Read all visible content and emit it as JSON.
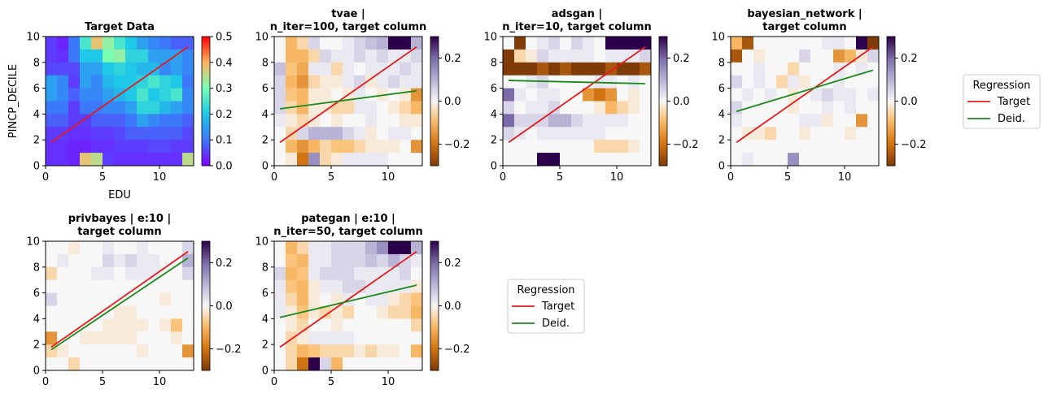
{
  "figure": {
    "legend_title": "Regression",
    "legend_entries": [
      "Target",
      "Deid."
    ],
    "colors": {
      "target_line": "#e41a1c",
      "deid_line": "#1a8a1a"
    }
  },
  "chart_data": [
    {
      "type": "heatmap",
      "title_lines": [
        "Target Data"
      ],
      "xlabel": "EDU",
      "ylabel": "PINCP_DECILE",
      "xlim": [
        0,
        13
      ],
      "ylim": [
        0,
        10
      ],
      "xticks": [
        "0",
        "5",
        "10"
      ],
      "yticks": [
        "0",
        "2",
        "4",
        "6",
        "8",
        "10"
      ],
      "colormap": "rainbow",
      "colorbar_range": [
        0,
        0.5
      ],
      "colorbar_ticks": [
        "0.0",
        "0.1",
        "0.2",
        "0.3",
        "0.4",
        "0.5"
      ],
      "grid_cols": 13,
      "grid_rows": 10,
      "cells": [
        [
          0.05,
          0.03,
          0.1,
          0.25,
          0.38,
          0.32,
          0.25,
          0.2,
          0.15,
          0.12,
          0.1,
          0.08,
          0.08
        ],
        [
          0.05,
          0.04,
          0.1,
          0.2,
          0.2,
          0.3,
          0.32,
          0.22,
          0.22,
          0.15,
          0.15,
          0.15,
          0.12
        ],
        [
          0.06,
          0.06,
          0.06,
          0.15,
          0.15,
          0.2,
          0.22,
          0.2,
          0.18,
          0.18,
          0.12,
          0.15,
          0.12
        ],
        [
          0.15,
          0.12,
          0.05,
          0.15,
          0.12,
          0.18,
          0.2,
          0.2,
          0.22,
          0.25,
          0.22,
          0.2,
          0.1
        ],
        [
          0.15,
          0.12,
          0.08,
          0.12,
          0.12,
          0.15,
          0.18,
          0.2,
          0.25,
          0.2,
          0.22,
          0.25,
          0.12
        ],
        [
          0.1,
          0.1,
          0.05,
          0.1,
          0.1,
          0.12,
          0.12,
          0.15,
          0.22,
          0.22,
          0.18,
          0.15,
          0.12
        ],
        [
          0.08,
          0.08,
          0.05,
          0.05,
          0.08,
          0.08,
          0.08,
          0.1,
          0.15,
          0.12,
          0.1,
          0.1,
          0.08
        ],
        [
          0.05,
          0.05,
          0.04,
          0.04,
          0.05,
          0.05,
          0.06,
          0.08,
          0.08,
          0.08,
          0.08,
          0.08,
          0.06
        ],
        [
          0.04,
          0.04,
          0.03,
          0.03,
          0.04,
          0.04,
          0.05,
          0.05,
          0.05,
          0.06,
          0.06,
          0.05,
          0.05
        ],
        [
          0.04,
          0.04,
          0.03,
          0.38,
          0.35,
          0.05,
          0.04,
          0.04,
          0.04,
          0.04,
          0.04,
          0.04,
          0.35
        ]
      ],
      "series": [
        {
          "name": "Target",
          "x": [
            0.5,
            12.5
          ],
          "y": [
            1.8,
            9.2
          ]
        }
      ]
    },
    {
      "type": "heatmap",
      "title_lines": [
        "tvae |",
        "n_iter=100, target column"
      ],
      "xlabel": "",
      "ylabel": "",
      "xlim": [
        0,
        13
      ],
      "ylim": [
        0,
        10
      ],
      "xticks": [
        "0",
        "5",
        "10"
      ],
      "yticks": [
        "0",
        "2",
        "4",
        "6",
        "8",
        "10"
      ],
      "colormap": "diverging",
      "colorbar_range": [
        -0.3,
        0.3
      ],
      "colorbar_ticks": [
        "−0.2",
        "0.0",
        "0.2"
      ],
      "grid_cols": 13,
      "grid_rows": 10,
      "cells": [
        [
          0,
          -0.1,
          -0.05,
          0.05,
          0,
          0,
          0.02,
          0.05,
          0.08,
          0.1,
          0.3,
          0.3,
          0.1
        ],
        [
          0,
          -0.1,
          -0.1,
          -0.05,
          0.05,
          0.02,
          0.02,
          0.05,
          0.02,
          0.05,
          0.02,
          0.02,
          0.05
        ],
        [
          0.08,
          -0.08,
          -0.12,
          0.02,
          0.02,
          -0.05,
          0.02,
          0,
          0.02,
          0.02,
          0.02,
          0.05,
          0.02
        ],
        [
          0.05,
          -0.1,
          -0.15,
          -0.05,
          -0.02,
          -0.02,
          0.02,
          0.05,
          -0.02,
          0.02,
          0.05,
          0.02,
          0.02
        ],
        [
          0.05,
          -0.08,
          -0.1,
          -0.02,
          -0.02,
          0,
          -0.02,
          0.02,
          0,
          -0.02,
          0,
          -0.02,
          -0.15
        ],
        [
          0.05,
          -0.05,
          -0.1,
          -0.02,
          -0.02,
          -0.05,
          -0.05,
          0.02,
          0.02,
          0,
          -0.02,
          -0.05,
          -0.1
        ],
        [
          0.02,
          -0.02,
          -0.05,
          -0.02,
          0,
          -0.02,
          0,
          0,
          0.02,
          0,
          0,
          -0.02,
          -0.02
        ],
        [
          0,
          -0.05,
          0.05,
          0.1,
          0.1,
          0.1,
          0.05,
          0.02,
          -0.02,
          0,
          0.02,
          0.02,
          0
        ],
        [
          0,
          -0.1,
          -0.15,
          -0.1,
          -0.05,
          -0.08,
          -0.08,
          -0.05,
          -0.02,
          -0.02,
          -0.02,
          0,
          -0.15
        ],
        [
          0,
          -0.02,
          -0.2,
          0.15,
          -0.05,
          -0.02,
          0.02,
          0.02,
          0.02,
          0.02,
          0,
          0,
          0
        ]
      ],
      "series": [
        {
          "name": "Target",
          "x": [
            0.5,
            12.5
          ],
          "y": [
            1.8,
            9.2
          ]
        },
        {
          "name": "Deid.",
          "x": [
            0.5,
            12.5
          ],
          "y": [
            4.4,
            5.8
          ]
        }
      ]
    },
    {
      "type": "heatmap",
      "title_lines": [
        "adsgan |",
        "n_iter=10, target column"
      ],
      "xlabel": "",
      "ylabel": "",
      "xlim": [
        0,
        13
      ],
      "ylim": [
        0,
        10
      ],
      "xticks": [
        "0",
        "5",
        "10"
      ],
      "yticks": [
        "0",
        "2",
        "4",
        "6",
        "8",
        "10"
      ],
      "colormap": "diverging",
      "colorbar_range": [
        -0.3,
        0.3
      ],
      "colorbar_ticks": [
        "−0.2",
        "0.0",
        "0.2"
      ],
      "grid_cols": 13,
      "grid_rows": 10,
      "cells": [
        [
          0,
          -0.3,
          0,
          0.02,
          0.05,
          0,
          0.05,
          0.02,
          0,
          0.3,
          0.3,
          0.3,
          0.3
        ],
        [
          -0.3,
          -0.05,
          -0.02,
          0.05,
          0.02,
          0.02,
          0.02,
          0.02,
          0,
          0.02,
          0.02,
          0.02,
          0.05
        ],
        [
          -0.3,
          -0.3,
          -0.3,
          -0.25,
          -0.3,
          -0.25,
          -0.3,
          -0.3,
          -0.3,
          -0.25,
          -0.3,
          -0.3,
          -0.25
        ],
        [
          0,
          0,
          0.02,
          0.05,
          0,
          0,
          0,
          0,
          0.02,
          0.02,
          0,
          0.02,
          0
        ],
        [
          0.2,
          0.02,
          0,
          0.02,
          0.02,
          0,
          0,
          -0.15,
          -0.2,
          -0.15,
          0,
          -0.02,
          0
        ],
        [
          0.05,
          0,
          0.02,
          0.02,
          0.05,
          0,
          0,
          0,
          -0.02,
          -0.1,
          -0.05,
          -0.02,
          0
        ],
        [
          0.2,
          0.05,
          0.05,
          0.05,
          0.1,
          0.1,
          0.05,
          0.02,
          0.02,
          0.02,
          0.02,
          0,
          0
        ],
        [
          0.05,
          0.02,
          0,
          0.02,
          0.02,
          0.02,
          0.02,
          0.02,
          0.02,
          0,
          0,
          0,
          0
        ],
        [
          0,
          0,
          0,
          0,
          0,
          0,
          0,
          0,
          -0.05,
          -0.05,
          -0.05,
          -0.02,
          0
        ],
        [
          0,
          0,
          0,
          0.3,
          0.3,
          0,
          0,
          0,
          0,
          0,
          0,
          0,
          0
        ]
      ],
      "series": [
        {
          "name": "Target",
          "x": [
            0.5,
            12.5
          ],
          "y": [
            1.8,
            9.2
          ]
        },
        {
          "name": "Deid.",
          "x": [
            0.5,
            12.5
          ],
          "y": [
            6.6,
            6.35
          ]
        }
      ]
    },
    {
      "type": "heatmap",
      "title_lines": [
        "bayesian_network |",
        "target column"
      ],
      "xlabel": "",
      "ylabel": "",
      "xlim": [
        0,
        13
      ],
      "ylim": [
        0,
        10
      ],
      "xticks": [
        "0",
        "5",
        "10"
      ],
      "yticks": [
        "0",
        "2",
        "4",
        "6",
        "8",
        "10"
      ],
      "colormap": "diverging",
      "colorbar_range": [
        -0.3,
        0.3
      ],
      "colorbar_ticks": [
        "−0.2",
        "0.0",
        "0.2"
      ],
      "grid_cols": 13,
      "grid_rows": 10,
      "cells": [
        [
          -0.1,
          -0.25,
          0,
          0,
          0,
          0,
          0,
          0,
          0.02,
          0.02,
          0,
          0.3,
          -0.3
        ],
        [
          -0.25,
          0,
          -0.02,
          0,
          0,
          0,
          0.05,
          0,
          0,
          -0.15,
          -0.1,
          -0.02,
          0.05
        ],
        [
          0,
          0,
          0.02,
          0,
          0,
          -0.05,
          0,
          0,
          0,
          0.02,
          0,
          0.02,
          0
        ],
        [
          0.05,
          0,
          0.02,
          0,
          -0.05,
          0.02,
          -0.02,
          0,
          0,
          0.02,
          0,
          0,
          0
        ],
        [
          0,
          0.02,
          0,
          0.02,
          0,
          -0.02,
          0,
          0.02,
          0.05,
          0.02,
          0.02,
          0,
          0.02
        ],
        [
          0.05,
          0,
          0,
          0,
          0,
          -0.02,
          0,
          0,
          0.02,
          0,
          0.02,
          0,
          0
        ],
        [
          0.02,
          0,
          0,
          0,
          0,
          0,
          0.02,
          0.02,
          -0.02,
          0,
          0,
          -0.15,
          0
        ],
        [
          0,
          -0.02,
          -0.02,
          -0.05,
          0,
          0,
          -0.02,
          0,
          0,
          0,
          -0.02,
          0,
          0
        ],
        [
          0,
          0,
          0,
          0,
          0,
          0,
          0,
          0,
          0,
          0,
          0,
          0,
          0
        ],
        [
          0,
          0.02,
          0,
          0,
          0,
          0.15,
          0,
          0,
          0,
          0,
          0,
          0,
          0
        ]
      ],
      "series": [
        {
          "name": "Target",
          "x": [
            0.5,
            12.5
          ],
          "y": [
            1.8,
            9.2
          ]
        },
        {
          "name": "Deid.",
          "x": [
            0.5,
            12.5
          ],
          "y": [
            4.2,
            7.4
          ]
        }
      ]
    },
    {
      "type": "heatmap",
      "title_lines": [
        "privbayes | e:10 |",
        "target column"
      ],
      "xlabel": "",
      "ylabel": "",
      "xlim": [
        0,
        13
      ],
      "ylim": [
        0,
        10
      ],
      "xticks": [
        "0",
        "5",
        "10"
      ],
      "yticks": [
        "0",
        "2",
        "4",
        "6",
        "8",
        "10"
      ],
      "colormap": "diverging",
      "colorbar_range": [
        -0.3,
        0.3
      ],
      "colorbar_ticks": [
        "−0.2",
        "0.0",
        "0.2"
      ],
      "grid_cols": 13,
      "grid_rows": 10,
      "cells": [
        [
          0,
          0,
          -0.02,
          0,
          0,
          0.02,
          0,
          0,
          0.02,
          0,
          0,
          0,
          0.05
        ],
        [
          0,
          0.02,
          0,
          0,
          0,
          0.05,
          0.02,
          0.05,
          0.02,
          0.02,
          0,
          0,
          0.1
        ],
        [
          -0.05,
          0,
          0,
          0,
          0.02,
          0.02,
          0,
          0.02,
          0.02,
          0.02,
          0,
          0,
          0.05
        ],
        [
          0,
          0,
          0,
          0,
          0,
          0,
          0,
          0,
          0,
          0,
          0,
          0,
          0
        ],
        [
          0.05,
          0,
          0,
          0,
          0,
          0,
          0,
          0,
          0,
          0,
          -0.02,
          0,
          0
        ],
        [
          0,
          0,
          0,
          0,
          0,
          0,
          -0.02,
          -0.02,
          0,
          0,
          0,
          0,
          0
        ],
        [
          0,
          0,
          0,
          0,
          0,
          -0.02,
          -0.02,
          -0.02,
          -0.02,
          0,
          -0.02,
          -0.08,
          0
        ],
        [
          -0.15,
          0,
          0,
          -0.02,
          -0.02,
          -0.02,
          -0.02,
          -0.02,
          0,
          0,
          0,
          -0.02,
          0
        ],
        [
          -0.05,
          -0.02,
          0,
          0,
          0,
          0,
          0,
          0,
          -0.02,
          0,
          0,
          0,
          -0.15
        ],
        [
          0,
          0,
          -0.05,
          0,
          0,
          0,
          0,
          0,
          0,
          0,
          0,
          0,
          0
        ]
      ],
      "series": [
        {
          "name": "Target",
          "x": [
            0.5,
            12.5
          ],
          "y": [
            1.8,
            9.2
          ]
        },
        {
          "name": "Deid.",
          "x": [
            0.5,
            12.5
          ],
          "y": [
            1.6,
            8.7
          ]
        }
      ]
    },
    {
      "type": "heatmap",
      "title_lines": [
        "pategan | e:10 |",
        "n_iter=50, target column"
      ],
      "xlabel": "",
      "ylabel": "",
      "xlim": [
        0,
        13
      ],
      "ylim": [
        0,
        10
      ],
      "xticks": [
        "0",
        "5",
        "10"
      ],
      "yticks": [
        "0",
        "2",
        "4",
        "6",
        "8",
        "10"
      ],
      "colormap": "diverging",
      "colorbar_range": [
        -0.3,
        0.3
      ],
      "colorbar_ticks": [
        "−0.2",
        "0.0",
        "0.2"
      ],
      "grid_cols": 13,
      "grid_rows": 10,
      "cells": [
        [
          0,
          -0.1,
          -0.05,
          0.02,
          0.02,
          0.05,
          0.05,
          0.05,
          0.1,
          0.15,
          0.3,
          0.3,
          0.1
        ],
        [
          0,
          -0.08,
          -0.1,
          0.02,
          0.02,
          0.05,
          0.05,
          0.05,
          0.08,
          0.05,
          0.1,
          0.05,
          0.02
        ],
        [
          0.05,
          -0.1,
          -0.08,
          0.02,
          0.05,
          0.05,
          0.05,
          0.02,
          0.02,
          0.02,
          0.02,
          0.05,
          0
        ],
        [
          0.02,
          -0.08,
          -0.1,
          -0.02,
          0.02,
          0.02,
          0.05,
          0.05,
          0.02,
          0.02,
          0.02,
          0.02,
          -0.02
        ],
        [
          0.02,
          -0.05,
          -0.1,
          -0.02,
          0,
          -0.02,
          0.02,
          0,
          0.02,
          0.02,
          -0.02,
          -0.05,
          -0.08
        ],
        [
          0.02,
          -0.02,
          -0.08,
          -0.02,
          -0.05,
          -0.02,
          -0.05,
          0,
          0,
          -0.02,
          -0.05,
          -0.05,
          -0.1
        ],
        [
          0,
          -0.02,
          -0.05,
          0,
          0,
          -0.02,
          0,
          0,
          0,
          0,
          0,
          0,
          -0.05
        ],
        [
          0,
          -0.05,
          -0.02,
          0.02,
          0.02,
          0.02,
          0.02,
          0,
          0,
          0,
          0,
          0,
          0
        ],
        [
          0,
          -0.05,
          -0.1,
          -0.08,
          -0.05,
          -0.05,
          -0.05,
          -0.02,
          -0.05,
          -0.02,
          -0.02,
          0,
          -0.1
        ],
        [
          0,
          -0.05,
          -0.2,
          0.3,
          0.05,
          -0.1,
          0,
          0,
          0,
          0,
          0,
          0,
          0
        ]
      ],
      "series": [
        {
          "name": "Target",
          "x": [
            0.5,
            12.5
          ],
          "y": [
            1.8,
            9.2
          ]
        },
        {
          "name": "Deid.",
          "x": [
            0.5,
            12.5
          ],
          "y": [
            4.1,
            6.6
          ]
        }
      ]
    }
  ]
}
